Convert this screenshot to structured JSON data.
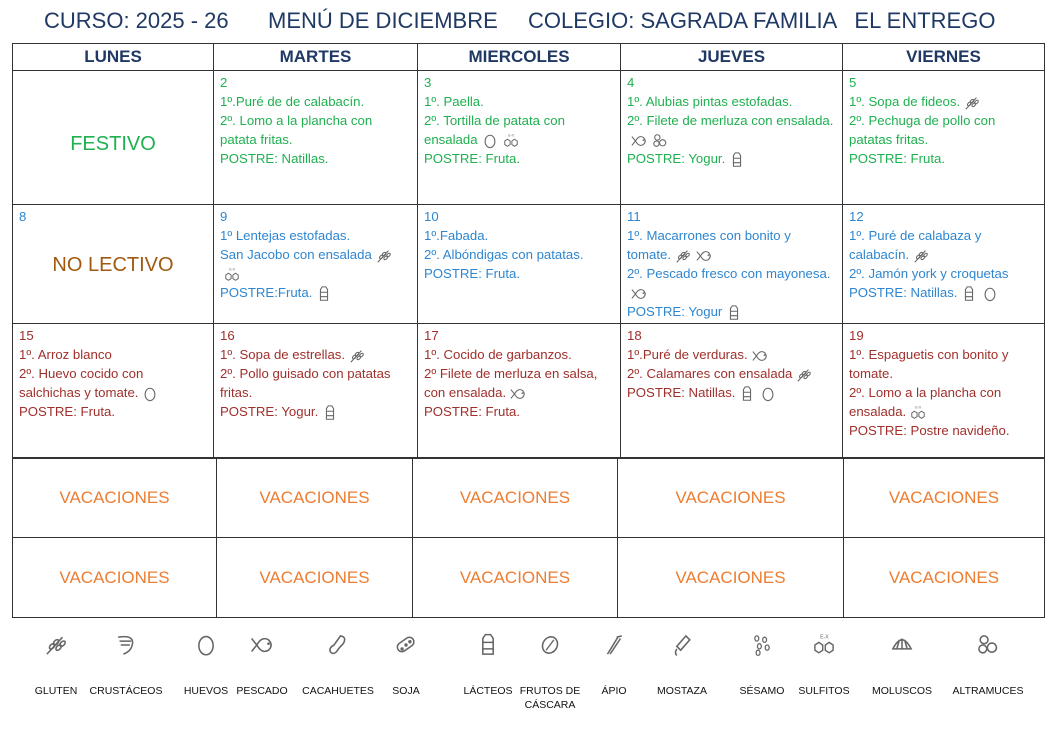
{
  "header": {
    "curso": "CURSO: 2025 - 26",
    "menu": "MENÚ DE DICIEMBRE",
    "colegio": "COLEGIO: SAGRADA FAMILIA   EL ENTREGO"
  },
  "days": [
    "LUNES",
    "MARTES",
    "MIERCOLES",
    "JUEVES",
    "VIERNES"
  ],
  "colors": {
    "title": "#1f3864",
    "week1": "#1fb050",
    "week2": "#2e86d0",
    "week3": "#a0302c",
    "no_lectivo": "#a05a10",
    "vacaciones": "#ed7d31",
    "icon": "#666666"
  },
  "weeks": [
    {
      "color": "week1",
      "days": [
        {
          "label": "FESTIVO",
          "label_color": "week1"
        },
        {
          "date": "2",
          "lines": [
            {
              "text": "1º.Puré de de calabacín.",
              "icons": []
            },
            {
              "text": "2º. Lomo a la plancha con patata fritas.",
              "icons": []
            },
            {
              "text": "POSTRE: Natillas.",
              "icons": []
            }
          ]
        },
        {
          "date": "3",
          "lines": [
            {
              "text": "1º. Paella.",
              "icons": []
            },
            {
              "text": "2º. Tortilla de patata con ensalada",
              "icons": [
                "huevos",
                "sulfitos"
              ]
            },
            {
              "text": "POSTRE: Fruta.",
              "icons": []
            }
          ]
        },
        {
          "date": "4",
          "lines": [
            {
              "text": "1º. Alubias pintas estofadas.",
              "icons": []
            },
            {
              "text": "2º.  Filete de merluza  con ensalada.",
              "icons": [
                "pescado",
                "altramuces"
              ]
            },
            {
              "text": "POSTRE: Yogur.",
              "icons": [
                "lacteos"
              ]
            }
          ]
        },
        {
          "date": "5",
          "lines": [
            {
              "text": "1º. Sopa de fideos.",
              "icons": [
                "gluten"
              ]
            },
            {
              "text": "2º. Pechuga de pollo con patatas fritas.",
              "icons": []
            },
            {
              "text": "POSTRE: Fruta.",
              "icons": []
            }
          ]
        }
      ]
    },
    {
      "color": "week2",
      "days": [
        {
          "date": "8",
          "label": "NO LECTIVO",
          "label_color": "no_lectivo"
        },
        {
          "date": "9",
          "lines": [
            {
              "text": "1º  Lentejas estofadas.",
              "icons": []
            },
            {
              "text": "San Jacobo con ensalada",
              "icons": [
                "gluten",
                "sulfitos"
              ]
            },
            {
              "text": "POSTRE:Fruta.",
              "icons": [
                "lacteos"
              ]
            }
          ]
        },
        {
          "date": "10",
          "lines": [
            {
              "text": "1º.Fabada.",
              "icons": []
            },
            {
              "text": " 2º. Albóndigas con patatas.",
              "icons": []
            },
            {
              "text": "POSTRE: Fruta.",
              "icons": []
            }
          ]
        },
        {
          "date": "11",
          "lines": [
            {
              "text": "1º.  Macarrones con bonito  y tomate.",
              "icons": [
                "gluten",
                "pescado"
              ]
            },
            {
              "text": "2º. Pescado fresco con mayonesa.",
              "icons": [
                "pescado"
              ]
            },
            {
              "text": "POSTRE: Yogur",
              "icons": [
                "lacteos"
              ]
            }
          ]
        },
        {
          "date": "12",
          "lines": [
            {
              "text": "1º. Puré de calabaza y calabacín.",
              "icons": [
                "gluten"
              ]
            },
            {
              "text": "2º. Jamón york y croquetas",
              "icons": []
            },
            {
              "text": "POSTRE: Natillas.",
              "icons": [
                "lacteos",
                "huevos"
              ]
            }
          ]
        }
      ]
    },
    {
      "color": "week3",
      "days": [
        {
          "date": "15",
          "lines": [
            {
              "text": "1º.  Arroz blanco",
              "icons": []
            },
            {
              "text": "2º.  Huevo cocido con salchichas y tomate.",
              "icons": [
                "huevos"
              ]
            },
            {
              "text": "POSTRE: Fruta.",
              "icons": []
            }
          ]
        },
        {
          "date": "16",
          "lines": [
            {
              "text": "1º. Sopa de estrellas.",
              "icons": [
                "gluten"
              ]
            },
            {
              "text": "2º. Pollo guisado con patatas fritas.",
              "icons": []
            },
            {
              "text": "POSTRE: Yogur.",
              "icons": [
                "lacteos"
              ]
            }
          ]
        },
        {
          "date": "17",
          "lines": [
            {
              "text": "1º. Cocido de  garbanzos.",
              "icons": []
            },
            {
              "text": "2º Filete de merluza en salsa, con ensalada.",
              "icons": [
                "pescado"
              ]
            },
            {
              "text": "POSTRE: Fruta.",
              "icons": []
            }
          ]
        },
        {
          "date": "18",
          "lines": [
            {
              "text": "1º.Puré de verduras.",
              "icons": [
                "pescado"
              ]
            },
            {
              "text": "2º. Calamares con ensalada",
              "icons": [
                "gluten"
              ]
            },
            {
              "text": "POSTRE: Natillas.",
              "icons": [
                "lacteos",
                "huevos"
              ]
            }
          ]
        },
        {
          "date": "19",
          "lines": [
            {
              "text": "1º.  Espaguetis con bonito y tomate.",
              "icons": []
            },
            {
              "text": "2º. Lomo a la plancha con ensalada.",
              "icons": [
                "sulfitos"
              ]
            },
            {
              "text": "POSTRE: Postre navideño.",
              "icons": []
            }
          ]
        }
      ]
    }
  ],
  "vacaciones": [
    [
      "VACACIONES",
      "VACACIONES",
      "VACACIONES",
      "VACACIONES",
      "VACACIONES"
    ],
    [
      "VACACIONES",
      "VACACIONES",
      "VACACIONES",
      "VACACIONES",
      "VACACIONES"
    ]
  ],
  "legend": [
    {
      "icon": "gluten",
      "label": "GLUTEN"
    },
    {
      "icon": "crustaceos",
      "label": "CRUSTÁCEOS"
    },
    {
      "icon": "huevos",
      "label": "HUEVOS"
    },
    {
      "icon": "pescado",
      "label": "PESCADO"
    },
    {
      "icon": "cacahuetes",
      "label": "CACAHUETES"
    },
    {
      "icon": "soja",
      "label": "SOJA"
    },
    {
      "icon": "lacteos",
      "label": "LÁCTEOS"
    },
    {
      "icon": "frutos",
      "label": "FRUTOS DE CÁSCARA"
    },
    {
      "icon": "apio",
      "label": "ÁPIO"
    },
    {
      "icon": "mostaza",
      "label": "MOSTAZA"
    },
    {
      "icon": "sesamo",
      "label": "SÉSAMO"
    },
    {
      "icon": "sulfitos",
      "label": "SULFITOS"
    },
    {
      "icon": "moluscos",
      "label": "MOLUSCOS"
    },
    {
      "icon": "altramuces",
      "label": "ALTRAMUCES"
    }
  ]
}
